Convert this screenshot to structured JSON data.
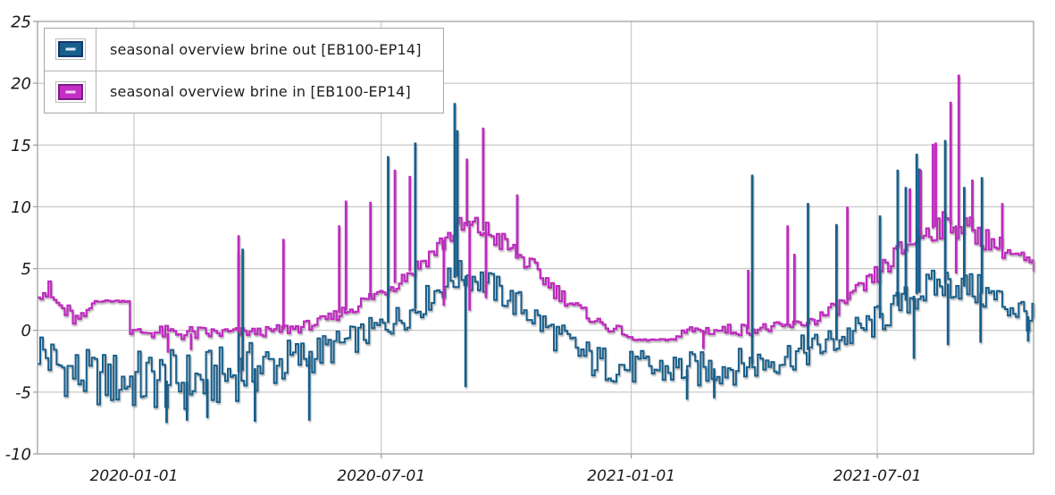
{
  "legend": {
    "items": [
      {
        "label": "seasonal overview brine out [EB100-EP14]",
        "swatch_fill": "#175f8c",
        "swatch_border": "#16356f",
        "dash": "#dce9f5"
      },
      {
        "label": "seasonal overview brine in [EB100-EP14]",
        "swatch_fill": "#c32ec4",
        "swatch_border": "#7c1b86",
        "dash": "#f3d4f3"
      }
    ]
  },
  "chart_data": {
    "type": "line",
    "title": "",
    "x_start": "2019-10-22",
    "x_end": "2021-10-24",
    "x_ticks": [
      "2020-01-01",
      "2020-07-01",
      "2021-01-01",
      "2021-07-01"
    ],
    "y_ticks": [
      25,
      20,
      15,
      10,
      5,
      0,
      -5,
      -10
    ],
    "y_min": -10,
    "y_max": 25,
    "grid": true,
    "grid_color": "#bdbdbd",
    "axis_color": "#9a9a9a",
    "label_color": "#1a1a1a",
    "legend_position": "top-left",
    "series": [
      {
        "name": "seasonal overview brine out [EB100-EP14]",
        "color": "#175f8c",
        "envelope": [
          [
            0,
            -3.5,
            0.8
          ],
          [
            8,
            -4.3,
            -0.3
          ],
          [
            18,
            -5.3,
            -0.9
          ],
          [
            30,
            -5.9,
            -1.4
          ],
          [
            45,
            -6.2,
            -1.7
          ],
          [
            60,
            -6.5,
            -1.6
          ],
          [
            75,
            -6.7,
            -1.5
          ],
          [
            90,
            -6.6,
            -1.4
          ],
          [
            105,
            -6.8,
            -1.6
          ],
          [
            120,
            -6.6,
            -1.5
          ],
          [
            135,
            -6.1,
            -1.3
          ],
          [
            150,
            -5.6,
            -1.0
          ],
          [
            165,
            -5.1,
            -0.8
          ],
          [
            180,
            -4.6,
            -0.6
          ],
          [
            195,
            -3.9,
            -0.5
          ],
          [
            210,
            -3.1,
            -0.2
          ],
          [
            225,
            -2.3,
            0.2
          ],
          [
            240,
            -1.5,
            0.8
          ],
          [
            255,
            -0.7,
            1.6
          ],
          [
            268,
            -0.1,
            2.3
          ],
          [
            280,
            0.7,
            3.1
          ],
          [
            292,
            1.9,
            4.3
          ],
          [
            302,
            2.8,
            5.2
          ],
          [
            312,
            3.2,
            5.8
          ],
          [
            322,
            3.0,
            5.5
          ],
          [
            332,
            2.4,
            4.9
          ],
          [
            342,
            1.7,
            4.1
          ],
          [
            352,
            0.9,
            3.4
          ],
          [
            362,
            0.1,
            2.7
          ],
          [
            372,
            -0.9,
            1.7
          ],
          [
            382,
            -1.9,
            0.9
          ],
          [
            392,
            -2.6,
            0.1
          ],
          [
            402,
            -3.6,
            -0.6
          ],
          [
            412,
            -4.2,
            -1.1
          ],
          [
            424,
            -4.3,
            -1.4
          ],
          [
            440,
            -4.5,
            -1.6
          ],
          [
            456,
            -4.7,
            -1.7
          ],
          [
            472,
            -4.6,
            -1.6
          ],
          [
            488,
            -4.7,
            -1.7
          ],
          [
            504,
            -4.5,
            -1.5
          ],
          [
            520,
            -4.3,
            -1.4
          ],
          [
            536,
            -3.9,
            -1.1
          ],
          [
            550,
            -3.5,
            -0.7
          ],
          [
            562,
            -3.1,
            -0.4
          ],
          [
            575,
            -2.7,
            0.0
          ],
          [
            588,
            -2.1,
            0.5
          ],
          [
            600,
            -1.5,
            1.1
          ],
          [
            612,
            -0.9,
            1.7
          ],
          [
            624,
            -0.1,
            2.6
          ],
          [
            636,
            0.9,
            3.5
          ],
          [
            648,
            1.6,
            4.4
          ],
          [
            658,
            2.1,
            4.9
          ],
          [
            668,
            2.4,
            5.2
          ],
          [
            678,
            2.3,
            5.1
          ],
          [
            688,
            1.9,
            4.7
          ],
          [
            698,
            1.4,
            4.3
          ],
          [
            708,
            0.9,
            3.8
          ],
          [
            718,
            0.4,
            3.3
          ],
          [
            726,
            0.0,
            2.8
          ],
          [
            733,
            -0.5,
            2.1
          ]
        ],
        "spikes": [
          [
            148,
            6.3
          ],
          [
            151,
            6.6
          ],
          [
            258,
            14.1
          ],
          [
            278,
            15.2
          ],
          [
            307,
            18.4
          ],
          [
            309,
            16.2
          ],
          [
            526,
            12.6
          ],
          [
            567,
            10.3
          ],
          [
            588,
            8.6
          ],
          [
            620,
            9.3
          ],
          [
            633,
            13.0
          ],
          [
            639,
            11.6
          ],
          [
            647,
            14.3
          ],
          [
            649,
            13.1
          ],
          [
            668,
            15.4
          ],
          [
            682,
            11.6
          ],
          [
            695,
            12.4
          ]
        ],
        "dips": [
          [
            95,
            -7.5
          ],
          [
            110,
            -7.3
          ],
          [
            125,
            -7.1
          ],
          [
            160,
            -7.4
          ],
          [
            200,
            -7.3
          ],
          [
            315,
            -4.6
          ],
          [
            478,
            -5.6
          ],
          [
            498,
            -5.5
          ],
          [
            645,
            -2.3
          ],
          [
            670,
            -1.2
          ],
          [
            694,
            -1.0
          ],
          [
            729,
            -0.9
          ]
        ]
      },
      {
        "name": "seasonal overview brine in [EB100-EP14]",
        "color": "#bf2abf",
        "envelope": [
          [
            0,
            2.6,
            4.9
          ],
          [
            6,
            1.9,
            4.4
          ],
          [
            12,
            1.1,
            3.5
          ],
          [
            18,
            0.6,
            2.7
          ],
          [
            24,
            0.3,
            1.9
          ],
          [
            30,
            0.2,
            1.3
          ],
          [
            36,
            1.1,
            1.7
          ],
          [
            41,
            2.3,
            2.45
          ],
          [
            66,
            2.3,
            2.45
          ],
          [
            68,
            -0.4,
            0.2
          ],
          [
            80,
            -0.6,
            0.3
          ],
          [
            95,
            -0.8,
            0.4
          ],
          [
            110,
            -0.9,
            0.4
          ],
          [
            125,
            -0.8,
            0.3
          ],
          [
            140,
            -0.7,
            0.3
          ],
          [
            155,
            -0.5,
            0.2
          ],
          [
            170,
            -0.5,
            0.3
          ],
          [
            182,
            -0.4,
            0.6
          ],
          [
            192,
            -0.2,
            0.7
          ],
          [
            202,
            0.1,
            0.9
          ],
          [
            212,
            0.4,
            1.3
          ],
          [
            222,
            0.9,
            1.9
          ],
          [
            232,
            1.3,
            2.4
          ],
          [
            242,
            1.9,
            3.1
          ],
          [
            252,
            2.5,
            3.7
          ],
          [
            262,
            3.1,
            4.4
          ],
          [
            272,
            3.9,
            5.3
          ],
          [
            282,
            4.7,
            6.3
          ],
          [
            292,
            5.7,
            7.3
          ],
          [
            301,
            6.6,
            8.5
          ],
          [
            309,
            7.2,
            9.2
          ],
          [
            317,
            7.4,
            9.5
          ],
          [
            325,
            7.2,
            9.2
          ],
          [
            333,
            6.8,
            8.8
          ],
          [
            341,
            6.2,
            8.1
          ],
          [
            349,
            5.6,
            7.3
          ],
          [
            357,
            4.9,
            6.5
          ],
          [
            365,
            4.1,
            5.7
          ],
          [
            373,
            3.3,
            4.9
          ],
          [
            381,
            2.5,
            3.9
          ],
          [
            389,
            1.9,
            3.1
          ],
          [
            397,
            1.3,
            2.3
          ],
          [
            405,
            0.7,
            1.6
          ],
          [
            413,
            0.2,
            1.0
          ],
          [
            421,
            -0.2,
            0.5
          ],
          [
            430,
            -0.4,
            0.3
          ],
          [
            437,
            -0.85,
            -0.7
          ],
          [
            468,
            -0.85,
            -0.7
          ],
          [
            471,
            -0.6,
            0.4
          ],
          [
            486,
            -0.5,
            0.5
          ],
          [
            502,
            -0.45,
            0.5
          ],
          [
            518,
            -0.4,
            0.55
          ],
          [
            534,
            -0.3,
            0.6
          ],
          [
            548,
            -0.15,
            0.7
          ],
          [
            560,
            0.1,
            0.9
          ],
          [
            572,
            0.4,
            1.4
          ],
          [
            582,
            0.9,
            2.0
          ],
          [
            592,
            1.5,
            2.8
          ],
          [
            602,
            2.3,
            3.7
          ],
          [
            612,
            3.1,
            4.7
          ],
          [
            622,
            4.1,
            5.9
          ],
          [
            632,
            5.1,
            7.1
          ],
          [
            642,
            6.1,
            8.1
          ],
          [
            652,
            6.9,
            8.9
          ],
          [
            662,
            7.3,
            9.5
          ],
          [
            672,
            7.5,
            9.7
          ],
          [
            680,
            7.3,
            9.5
          ],
          [
            688,
            6.9,
            9.1
          ],
          [
            696,
            6.5,
            8.5
          ],
          [
            704,
            6.1,
            7.9
          ],
          [
            712,
            5.7,
            7.3
          ],
          [
            720,
            5.3,
            6.7
          ],
          [
            727,
            4.9,
            6.3
          ],
          [
            733,
            4.2,
            5.6
          ]
        ],
        "spikes": [
          [
            148,
            7.7
          ],
          [
            181,
            7.4
          ],
          [
            222,
            8.5
          ],
          [
            227,
            10.5
          ],
          [
            245,
            10.4
          ],
          [
            263,
            13.0
          ],
          [
            274,
            12.5
          ],
          [
            316,
            13.9
          ],
          [
            328,
            16.4
          ],
          [
            353,
            11.0
          ],
          [
            523,
            4.9
          ],
          [
            552,
            8.5
          ],
          [
            557,
            6.2
          ],
          [
            596,
            10.0
          ],
          [
            642,
            11.5
          ],
          [
            650,
            13.0
          ],
          [
            659,
            15.1
          ],
          [
            661,
            15.2
          ],
          [
            672,
            18.5
          ],
          [
            678,
            20.7
          ],
          [
            688,
            12.2
          ],
          [
            710,
            10.3
          ]
        ],
        "dips": [
          [
            96,
            -1.8
          ],
          [
            113,
            -1.6
          ],
          [
            299,
            2.0
          ],
          [
            318,
            1.6
          ],
          [
            330,
            2.6
          ],
          [
            490,
            -1.5
          ],
          [
            676,
            4.6
          ]
        ]
      }
    ]
  }
}
